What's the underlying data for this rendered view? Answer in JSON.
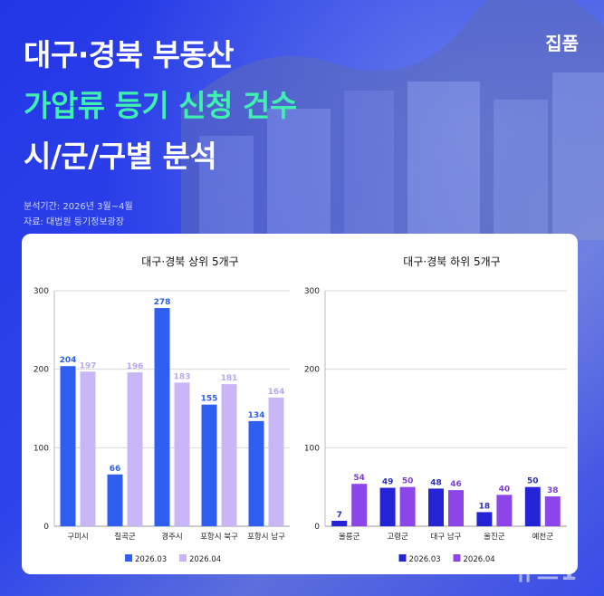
{
  "header": {
    "title_line1": "대구·경북 부동산",
    "title_line2": "가압류 등기 신청 건수",
    "title_line3": "시/군/구별 분석",
    "brand": "집품",
    "period": "분석기간: 2026년 3월~4월",
    "source": "자료: 대법원 등기정보광장"
  },
  "watermark": "뉴스1",
  "chart_data": [
    {
      "type": "bar",
      "title": "대구·경북 상위 5개구",
      "categories": [
        "구미시",
        "칠곡군",
        "경주시",
        "포항시 북구",
        "포항시 남구"
      ],
      "series": [
        {
          "name": "2026.03",
          "values": [
            204,
            66,
            278,
            155,
            134
          ],
          "color": "#2e5ff0",
          "label_color": "#2e5ff0"
        },
        {
          "name": "2026.04",
          "values": [
            197,
            196,
            183,
            181,
            164
          ],
          "color": "#c8b6f6",
          "label_color": "#b9a6f2"
        }
      ],
      "ylim": [
        0,
        300
      ],
      "yticks": [
        "0",
        "100",
        "200",
        "300"
      ],
      "grid": true,
      "legend": "bottom"
    },
    {
      "type": "bar",
      "title": "대구·경북 하위 5개구",
      "categories": [
        "울릉군",
        "고령군",
        "대구 남구",
        "울진군",
        "예천군"
      ],
      "series": [
        {
          "name": "2026.03",
          "values": [
            7,
            49,
            48,
            18,
            50
          ],
          "color": "#2424d6",
          "label_color": "#2a2fc0"
        },
        {
          "name": "2026.04",
          "values": [
            54,
            50,
            46,
            40,
            38
          ],
          "color": "#8b45e8",
          "label_color": "#7a3fd8"
        }
      ],
      "ylim": [
        0,
        300
      ],
      "yticks": [
        "0",
        "100",
        "200",
        "300"
      ],
      "grid": true,
      "legend": "bottom"
    }
  ]
}
